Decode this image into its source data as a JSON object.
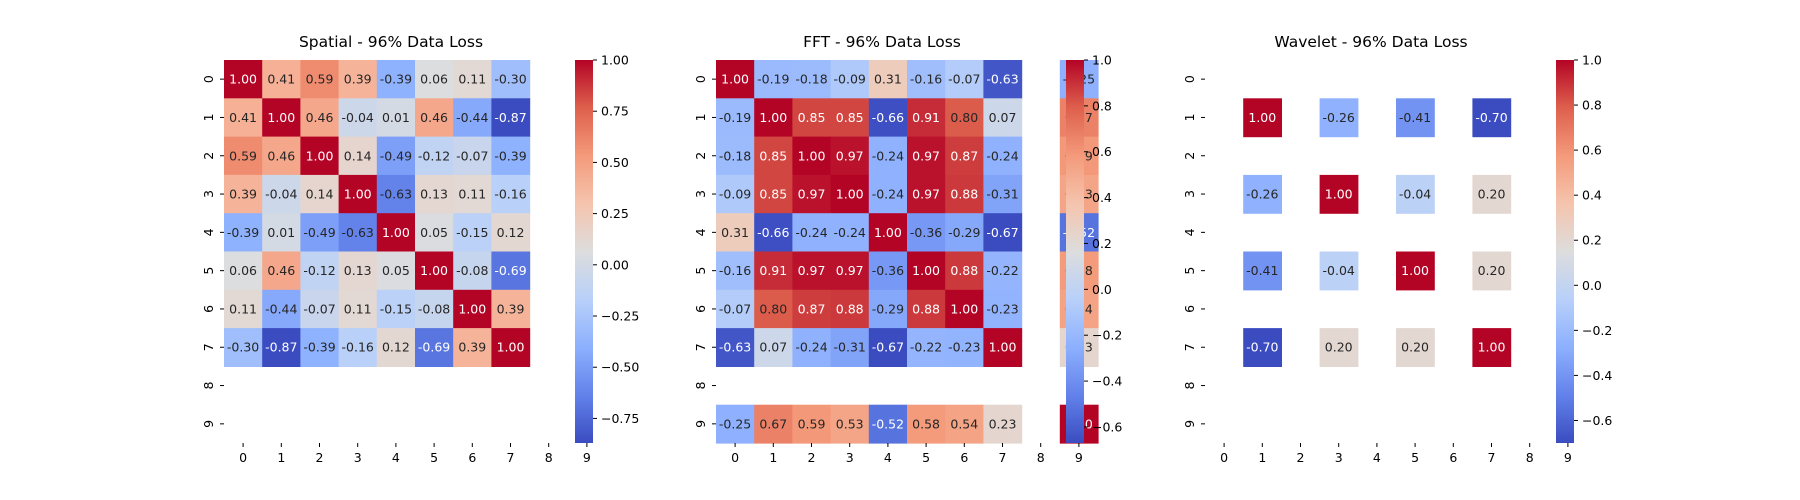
{
  "chart_data": [
    {
      "type": "heatmap",
      "title": "Spatial - 96% Data Loss",
      "x_ticks": [
        "0",
        "1",
        "2",
        "3",
        "4",
        "5",
        "6",
        "7",
        "8",
        "9"
      ],
      "y_ticks": [
        "0",
        "1",
        "2",
        "3",
        "4",
        "5",
        "6",
        "7",
        "8",
        "9"
      ],
      "matrix": [
        [
          1.0,
          0.41,
          0.59,
          0.39,
          -0.39,
          0.06,
          0.11,
          -0.3,
          null,
          null
        ],
        [
          0.41,
          1.0,
          0.46,
          -0.04,
          0.01,
          0.46,
          -0.44,
          -0.87,
          null,
          null
        ],
        [
          0.59,
          0.46,
          1.0,
          0.14,
          -0.49,
          -0.12,
          -0.07,
          -0.39,
          null,
          null
        ],
        [
          0.39,
          -0.04,
          0.14,
          1.0,
          -0.63,
          0.13,
          0.11,
          -0.16,
          null,
          null
        ],
        [
          -0.39,
          0.01,
          -0.49,
          -0.63,
          1.0,
          0.05,
          -0.15,
          0.12,
          null,
          null
        ],
        [
          0.06,
          0.46,
          -0.12,
          0.13,
          0.05,
          1.0,
          -0.08,
          -0.69,
          null,
          null
        ],
        [
          0.11,
          -0.44,
          -0.07,
          0.11,
          -0.15,
          -0.08,
          1.0,
          0.39,
          null,
          null
        ],
        [
          -0.3,
          -0.87,
          -0.39,
          -0.16,
          0.12,
          -0.69,
          0.39,
          1.0,
          null,
          null
        ],
        [
          null,
          null,
          null,
          null,
          null,
          null,
          null,
          null,
          null,
          null
        ],
        [
          null,
          null,
          null,
          null,
          null,
          null,
          null,
          null,
          null,
          null
        ]
      ],
      "vmin": -0.87,
      "vmax": 1.0,
      "colormap": "coolwarm",
      "colorbar_ticks": [
        "1.00",
        "0.75",
        "0.50",
        "0.25",
        "0.00",
        "-0.25",
        "-0.50",
        "-0.75"
      ]
    },
    {
      "type": "heatmap",
      "title": "FFT - 96% Data Loss",
      "x_ticks": [
        "0",
        "1",
        "2",
        "3",
        "4",
        "5",
        "6",
        "7",
        "8",
        "9"
      ],
      "y_ticks": [
        "0",
        "1",
        "2",
        "3",
        "4",
        "5",
        "6",
        "7",
        "8",
        "9"
      ],
      "matrix": [
        [
          1.0,
          -0.19,
          -0.18,
          -0.09,
          0.31,
          -0.16,
          -0.07,
          -0.63,
          null,
          -0.25
        ],
        [
          -0.19,
          1.0,
          0.85,
          0.85,
          -0.66,
          0.91,
          0.8,
          0.07,
          null,
          0.67
        ],
        [
          -0.18,
          0.85,
          1.0,
          0.97,
          -0.24,
          0.97,
          0.87,
          -0.24,
          null,
          0.59
        ],
        [
          -0.09,
          0.85,
          0.97,
          1.0,
          -0.24,
          0.97,
          0.88,
          -0.31,
          null,
          0.53
        ],
        [
          0.31,
          -0.66,
          -0.24,
          -0.24,
          1.0,
          -0.36,
          -0.29,
          -0.67,
          null,
          -0.52
        ],
        [
          -0.16,
          0.91,
          0.97,
          0.97,
          -0.36,
          1.0,
          0.88,
          -0.22,
          null,
          0.58
        ],
        [
          -0.07,
          0.8,
          0.87,
          0.88,
          -0.29,
          0.88,
          1.0,
          -0.23,
          null,
          0.54
        ],
        [
          -0.63,
          0.07,
          -0.24,
          -0.31,
          -0.67,
          -0.22,
          -0.23,
          1.0,
          null,
          0.23
        ],
        [
          null,
          null,
          null,
          null,
          null,
          null,
          null,
          null,
          null,
          null
        ],
        [
          -0.25,
          0.67,
          0.59,
          0.53,
          -0.52,
          0.58,
          0.54,
          0.23,
          null,
          1.0
        ]
      ],
      "vmin": -0.67,
      "vmax": 1.0,
      "colormap": "coolwarm",
      "colorbar_ticks": [
        "1.0",
        "0.8",
        "0.6",
        "0.4",
        "0.2",
        "0.0",
        "-0.2",
        "-0.4",
        "-0.6"
      ]
    },
    {
      "type": "heatmap",
      "title": "Wavelet - 96% Data Loss",
      "x_ticks": [
        "0",
        "1",
        "2",
        "3",
        "4",
        "5",
        "6",
        "7",
        "8",
        "9"
      ],
      "y_ticks": [
        "0",
        "1",
        "2",
        "3",
        "4",
        "5",
        "6",
        "7",
        "8",
        "9"
      ],
      "matrix": [
        [
          null,
          null,
          null,
          null,
          null,
          null,
          null,
          null,
          null,
          null
        ],
        [
          null,
          1.0,
          null,
          -0.26,
          null,
          -0.41,
          null,
          -0.7,
          null,
          null
        ],
        [
          null,
          null,
          null,
          null,
          null,
          null,
          null,
          null,
          null,
          null
        ],
        [
          null,
          -0.26,
          null,
          1.0,
          null,
          -0.04,
          null,
          0.2,
          null,
          null
        ],
        [
          null,
          null,
          null,
          null,
          null,
          null,
          null,
          null,
          null,
          null
        ],
        [
          null,
          -0.41,
          null,
          -0.04,
          null,
          1.0,
          null,
          0.2,
          null,
          null
        ],
        [
          null,
          null,
          null,
          null,
          null,
          null,
          null,
          null,
          null,
          null
        ],
        [
          null,
          -0.7,
          null,
          0.2,
          null,
          0.2,
          null,
          1.0,
          null,
          null
        ],
        [
          null,
          null,
          null,
          null,
          null,
          null,
          null,
          null,
          null,
          null
        ],
        [
          null,
          null,
          null,
          null,
          null,
          null,
          null,
          null,
          null,
          null
        ]
      ],
      "vmin": -0.7,
      "vmax": 1.0,
      "colormap": "coolwarm",
      "colorbar_ticks": [
        "1.0",
        "0.8",
        "0.6",
        "0.4",
        "0.2",
        "0.0",
        "-0.2",
        "-0.4",
        "-0.6"
      ]
    }
  ]
}
